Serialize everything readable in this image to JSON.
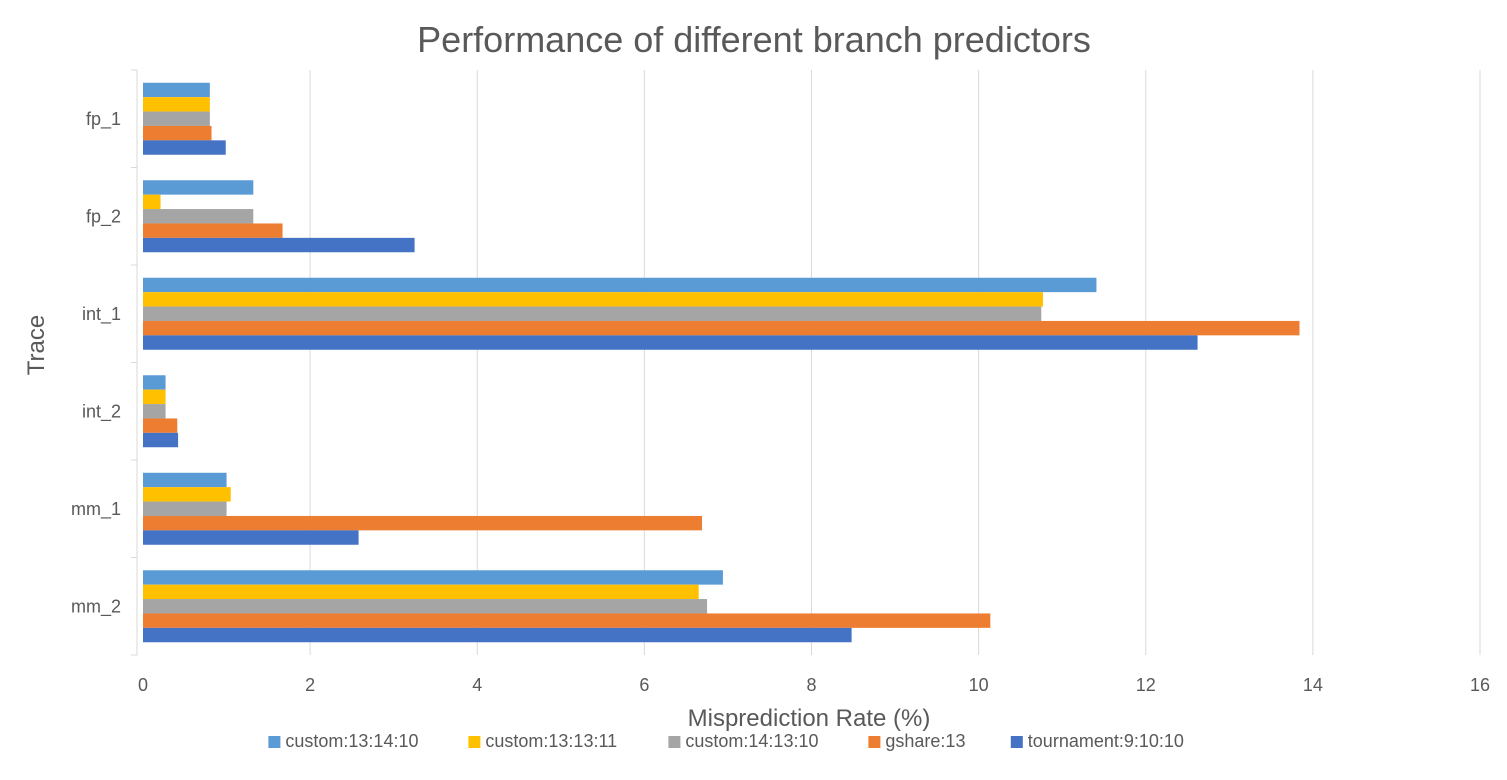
{
  "chart_data": {
    "type": "bar",
    "orientation": "horizontal",
    "title": "Performance of different branch predictors",
    "xlabel": "Misprediction Rate (%)",
    "ylabel": "Trace",
    "xlim": [
      0,
      16
    ],
    "xticks": [
      0,
      2,
      4,
      6,
      8,
      10,
      12,
      14,
      16
    ],
    "grid": "vertical",
    "legend_position": "bottom",
    "categories": [
      "fp_1",
      "fp_2",
      "int_1",
      "int_2",
      "mm_1",
      "mm_2"
    ],
    "series": [
      {
        "name": "custom:13:14:10",
        "color": "#5b9bd5",
        "values": [
          0.8,
          1.32,
          11.41,
          0.27,
          1.0,
          6.94
        ]
      },
      {
        "name": "custom:13:13:11",
        "color": "#ffc000",
        "values": [
          0.8,
          0.21,
          10.77,
          0.27,
          1.05,
          6.65
        ]
      },
      {
        "name": "custom:14:13:10",
        "color": "#a5a5a5",
        "values": [
          0.8,
          1.32,
          10.75,
          0.27,
          1.0,
          6.75
        ]
      },
      {
        "name": "gshare:13",
        "color": "#ed7d31",
        "values": [
          0.82,
          1.67,
          13.84,
          0.41,
          6.69,
          10.14
        ]
      },
      {
        "name": "tournament:9:10:10",
        "color": "#4472c4",
        "values": [
          0.99,
          3.25,
          12.62,
          0.42,
          2.58,
          8.48
        ]
      }
    ]
  }
}
